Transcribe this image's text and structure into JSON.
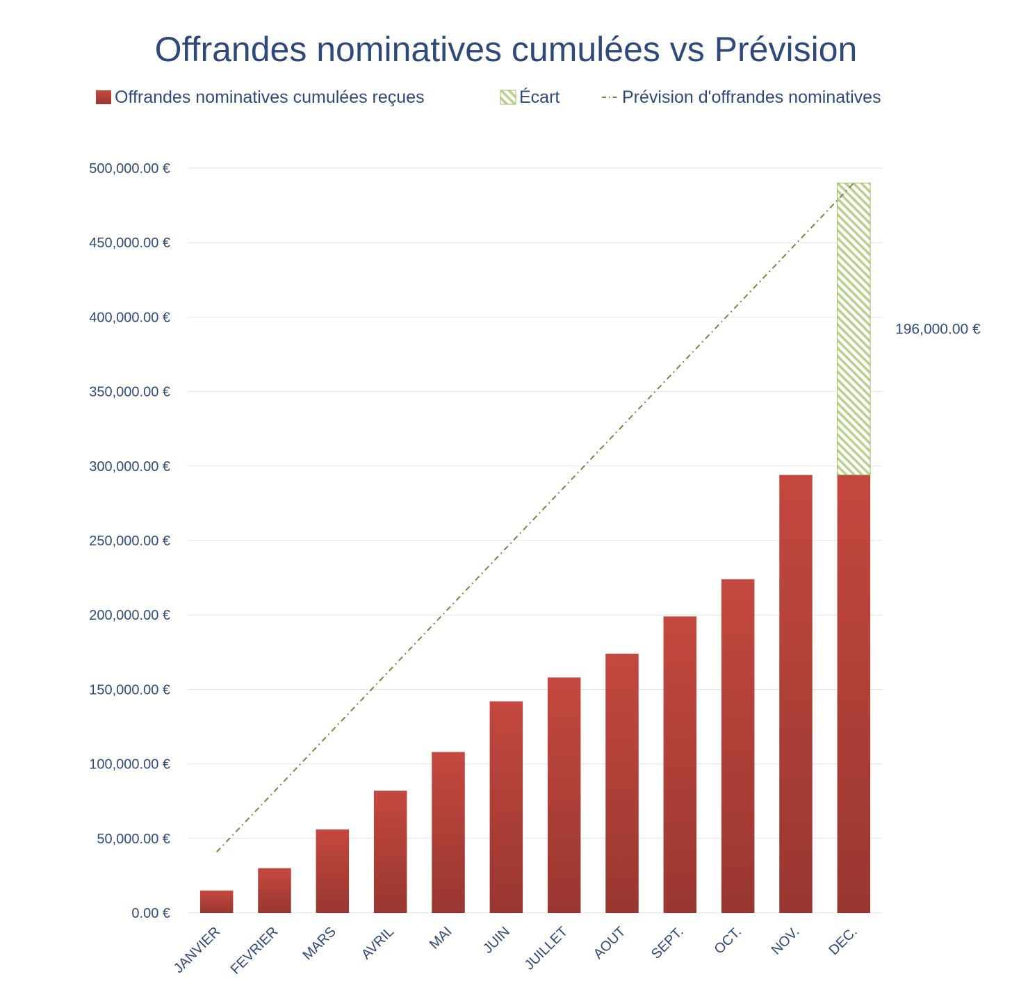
{
  "chart_data": {
    "type": "bar",
    "title": "Offrandes nominatives cumulées vs Prévision",
    "categories": [
      "JANVIER",
      "FEVRIER",
      "MARS",
      "AVRIL",
      "MAI",
      "JUIN",
      "JUILLET",
      "AOUT",
      "SEPT.",
      "OCT.",
      "NOV.",
      "DEC."
    ],
    "series": [
      {
        "name": "Offrandes nominatives cumulées reçues",
        "type": "bar",
        "color": "#c0463e",
        "values": [
          15000,
          30000,
          56000,
          82000,
          108000,
          142000,
          158000,
          174000,
          199000,
          224000,
          294000,
          294000
        ]
      },
      {
        "name": "Écart",
        "type": "stacked-bar-hatched",
        "color": "#9bbb59",
        "values": [
          null,
          null,
          null,
          null,
          null,
          null,
          null,
          null,
          null,
          null,
          null,
          196000
        ]
      },
      {
        "name": "Prévision d'offrandes nominatives",
        "type": "line-dashdot",
        "color": "#6b8e3a",
        "values": [
          40833,
          81667,
          122500,
          163333,
          204167,
          245000,
          285833,
          326667,
          367500,
          408333,
          449167,
          490000
        ]
      }
    ],
    "data_labels": [
      {
        "category": "DEC.",
        "series": "Écart",
        "text": "196,000.00 €"
      }
    ],
    "ylim": [
      0,
      500000
    ],
    "y_ticks": [
      0,
      50000,
      100000,
      150000,
      200000,
      250000,
      300000,
      350000,
      400000,
      450000,
      500000
    ],
    "y_tick_labels": [
      "0.00 €",
      "50,000.00 €",
      "100,000.00 €",
      "150,000.00 €",
      "200,000.00 €",
      "250,000.00 €",
      "300,000.00 €",
      "350,000.00 €",
      "400,000.00 €",
      "450,000.00 €",
      "500,000.00 €"
    ],
    "grid": true,
    "legend_position": "top"
  }
}
